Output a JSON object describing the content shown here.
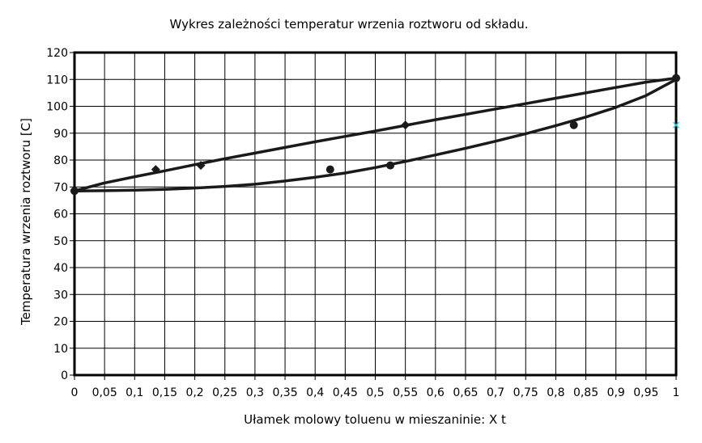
{
  "chart_data": {
    "type": "line",
    "title": "Wykres zależności temperatur wrzenia roztworu od składu.",
    "xlabel": "Ułamek molowy toluenu w mieszaninie: X t",
    "ylabel": "Temperatura wrzenia roztworu [C]",
    "xlim": [
      0,
      1
    ],
    "ylim": [
      0,
      120
    ],
    "x_ticks": [
      "0",
      "0,05",
      "0,1",
      "0,15",
      "0,2",
      "0,25",
      "0,3",
      "0,35",
      "0,4",
      "0,45",
      "0,5",
      "0,55",
      "0,6",
      "0,65",
      "0,7",
      "0,75",
      "0,8",
      "0,85",
      "0,9",
      "0,95",
      "1"
    ],
    "x_tick_values": [
      0,
      0.05,
      0.1,
      0.15,
      0.2,
      0.25,
      0.3,
      0.35,
      0.4,
      0.45,
      0.5,
      0.55,
      0.6,
      0.65,
      0.7,
      0.75,
      0.8,
      0.85,
      0.9,
      0.95,
      1
    ],
    "y_ticks": [
      0,
      10,
      20,
      30,
      40,
      50,
      60,
      70,
      80,
      90,
      100,
      110,
      120
    ],
    "grid": true,
    "series": [
      {
        "kind": "line",
        "color": "#1a1a1a",
        "x": [
          0,
          0.05,
          0.1,
          0.15,
          0.2,
          0.25,
          0.3,
          0.35,
          0.4,
          0.45,
          0.5,
          0.55,
          0.6,
          0.65,
          0.7,
          0.75,
          0.8,
          0.85,
          0.9,
          0.95,
          1
        ],
        "y": [
          68.5,
          71.5,
          73.8,
          76.0,
          78.3,
          80.5,
          82.6,
          84.7,
          86.8,
          88.8,
          90.8,
          92.9,
          95.0,
          97.0,
          99.0,
          101.0,
          103.0,
          105.0,
          107.0,
          109.0,
          110.5
        ]
      },
      {
        "kind": "line",
        "color": "#1a1a1a",
        "x": [
          0,
          0.05,
          0.1,
          0.15,
          0.2,
          0.25,
          0.3,
          0.35,
          0.4,
          0.45,
          0.5,
          0.55,
          0.6,
          0.65,
          0.7,
          0.75,
          0.8,
          0.85,
          0.9,
          0.95,
          1
        ],
        "y": [
          68.5,
          68.6,
          68.8,
          69.1,
          69.6,
          70.2,
          71.0,
          72.2,
          73.6,
          75.2,
          77.2,
          79.5,
          81.9,
          84.4,
          87.0,
          89.8,
          92.8,
          96.0,
          99.6,
          104.0,
          110.0
        ]
      },
      {
        "kind": "scatter",
        "marker": "diamond",
        "color": "#1a1a1a",
        "x": [
          0,
          0.135,
          0.21,
          0.55,
          1
        ],
        "y": [
          68.5,
          76.5,
          78,
          93,
          110.5
        ]
      },
      {
        "kind": "scatter",
        "marker": "circle",
        "color": "#1a1a1a",
        "x": [
          0,
          0.425,
          0.525,
          0.83,
          1
        ],
        "y": [
          68.5,
          76.5,
          78,
          93,
          110.5
        ]
      },
      {
        "kind": "scatter",
        "marker": "cross",
        "color": "#33ccdd",
        "x": [
          1
        ],
        "y": [
          93
        ]
      }
    ]
  }
}
